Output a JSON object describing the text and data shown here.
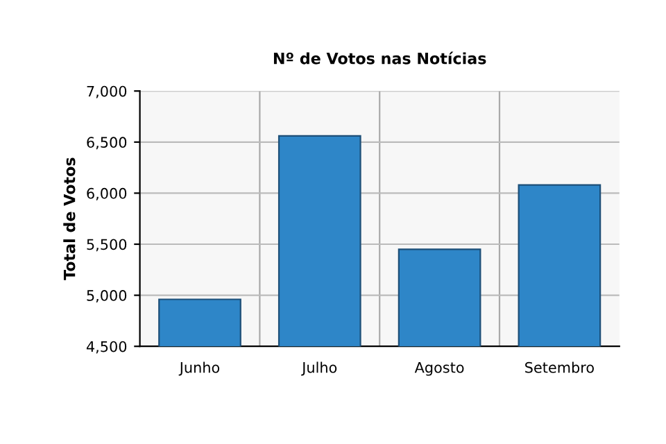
{
  "chart_data": {
    "type": "bar",
    "title": "Nº de Votos nas Notícias",
    "ylabel": "Total de Votos",
    "categories": [
      "Junho",
      "Julho",
      "Agosto",
      "Setembro"
    ],
    "values": [
      4960,
      6560,
      5450,
      6080
    ],
    "color": "#2e86c8",
    "ylim": [
      4500,
      7000
    ],
    "yticks": [
      {
        "value": 4500,
        "label": "4,500"
      },
      {
        "value": 5000,
        "label": "5,000"
      },
      {
        "value": 5500,
        "label": "5,500"
      },
      {
        "value": 6000,
        "label": "6,000"
      },
      {
        "value": 6500,
        "label": "6,500"
      },
      {
        "value": 7000,
        "label": "7,000"
      }
    ],
    "grid": true,
    "legend": false
  }
}
